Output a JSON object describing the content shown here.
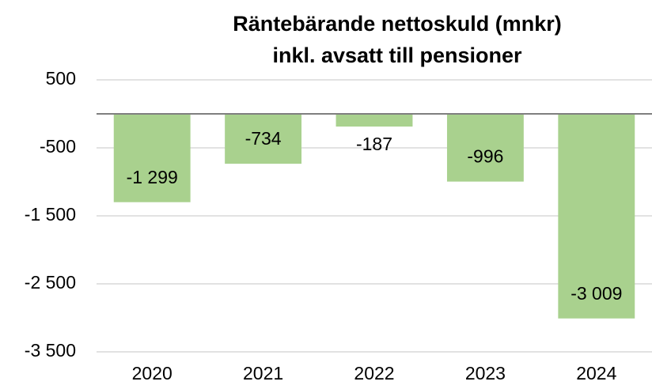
{
  "chart_data": {
    "type": "bar",
    "title": [
      "Räntebärande nettoskuld (mnkr)",
      "inkl. avsatt till pensioner"
    ],
    "categories": [
      "2020",
      "2021",
      "2022",
      "2023",
      "2024"
    ],
    "values": [
      -1299,
      -734,
      -187,
      -996,
      -3009
    ],
    "value_labels": [
      "-1 299",
      "-734",
      "-187",
      "-996",
      "-3 009"
    ],
    "color": "#a9d18e",
    "ylim": [
      -3500,
      500
    ],
    "yticks": [
      500,
      -500,
      {
        "value": -1500,
        "label": "-1 500"
      },
      {
        "value": -2500,
        "label": "-2 500"
      },
      {
        "value": -3500,
        "label": "-3 500"
      }
    ],
    "grid": true
  }
}
